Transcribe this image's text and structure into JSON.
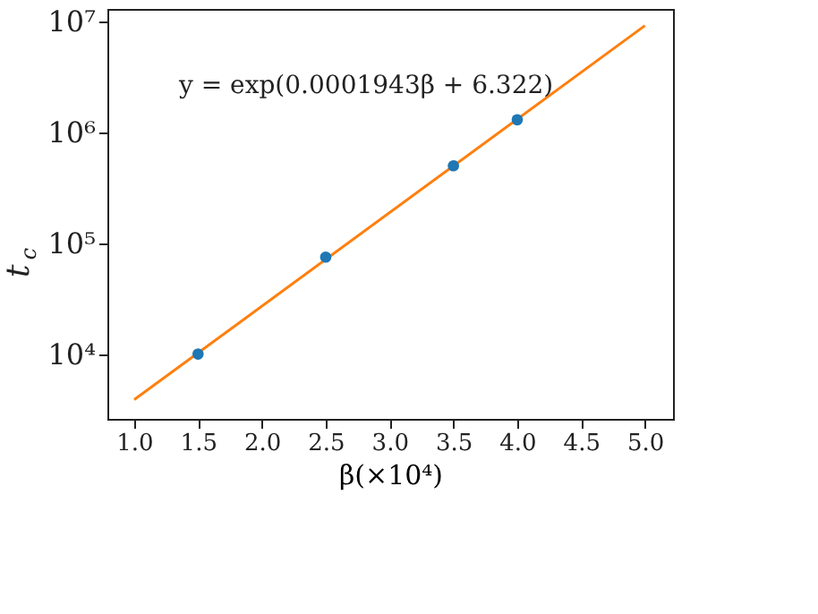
{
  "chart_data": {
    "type": "scatter",
    "xlabel": "β(×10⁴)",
    "ylabel": "t$_{c}$",
    "log": "y",
    "grid": false,
    "legend": false,
    "xlim": [
      0.79,
      5.22
    ],
    "xticks": [
      {
        "value": 1,
        "label": "1.0"
      },
      {
        "value": 1.5,
        "label": "1.5"
      },
      {
        "value": 2,
        "label": "2.0"
      },
      {
        "value": 2.5,
        "label": "2.5"
      },
      {
        "value": 3,
        "label": "3.0"
      },
      {
        "value": 3.5,
        "label": "3.5"
      },
      {
        "value": 4,
        "label": "4.0"
      },
      {
        "value": 4.5,
        "label": "4.5"
      },
      {
        "value": 5,
        "label": "5.0"
      }
    ],
    "ylim": [
      2600,
      13000000
    ],
    "yticks": [
      {
        "value": 10000,
        "label": "10⁴"
      },
      {
        "value": 100000,
        "label": "10⁵"
      },
      {
        "value": 1000000,
        "label": "10⁶"
      },
      {
        "value": 10000000,
        "label": "10⁷"
      }
    ],
    "annotations": [
      "y = exp(0.0001943β + 6.322)"
    ],
    "series": [
      {
        "type": "line",
        "color": "#ff7f0e",
        "x": [
          1.0,
          5.0
        ],
        "values": [
          3880,
          9200000
        ],
        "marker": "none"
      },
      {
        "color": "#1f77b4",
        "x": [
          1.5,
          2.5,
          3.5,
          4.0
        ],
        "values": [
          10000,
          75000,
          500000,
          1300000
        ],
        "marker": "circle"
      }
    ]
  }
}
